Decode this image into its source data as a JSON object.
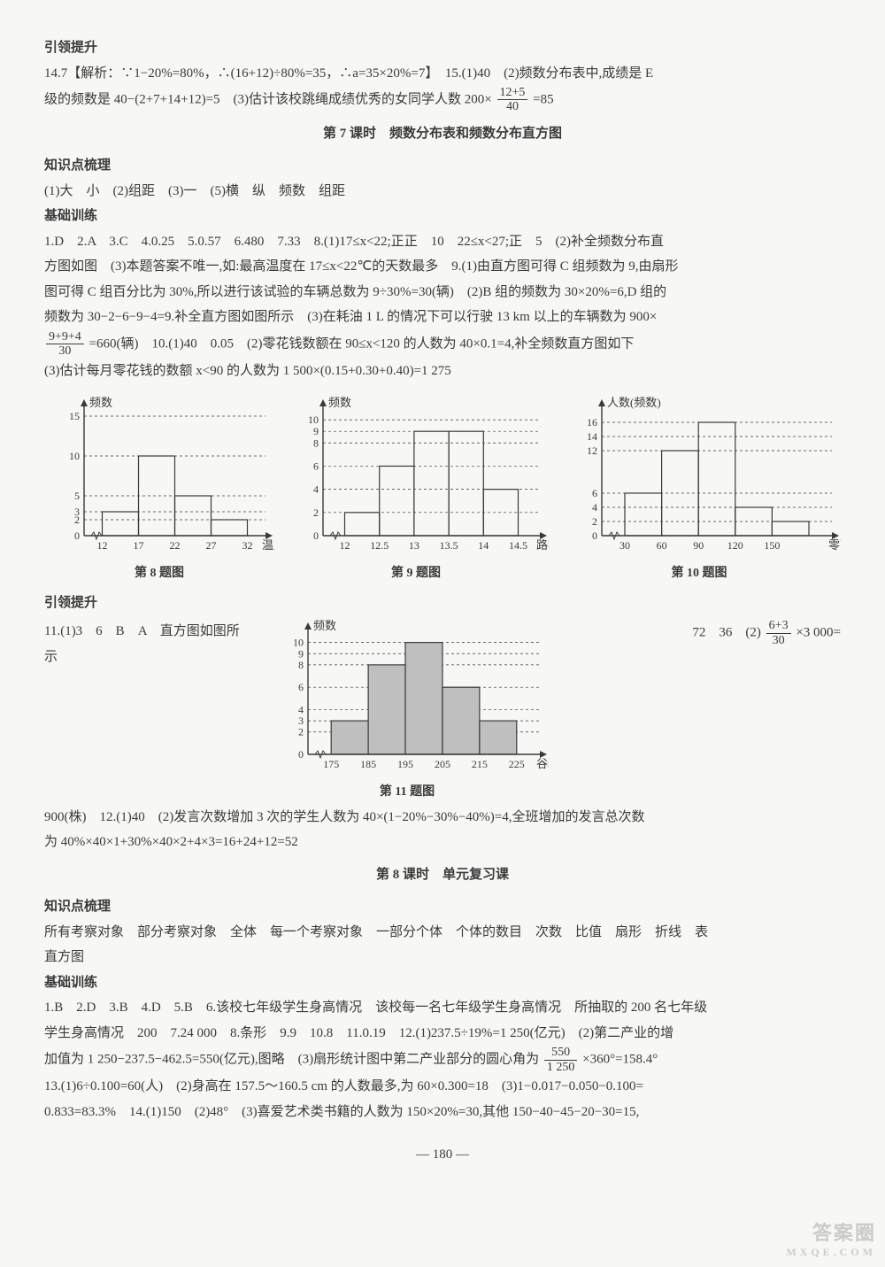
{
  "sec_yinling1": "引领提升",
  "line14": "14.7【解析：∵1−20%=80%，∴(16+12)÷80%=35，∴a=35×20%=7】　15.(1)40　(2)频数分布表中,成绩是 E",
  "line14b_pre": "级的频数是 40−(2+7+14+12)=5　(3)估计该校跳绳成绩优秀的女同学人数 200×",
  "frac1_num": "12+5",
  "frac1_den": "40",
  "line14b_post": "=85",
  "title7": "第 7 课时　频数分布表和频数分布直方图",
  "sec_zhishi1": "知识点梳理",
  "zhishi1_line": "(1)大　小　(2)组距　(3)一　(5)横　纵　频数　组距",
  "sec_jichu1": "基础训练",
  "jichu_l1": "1.D　2.A　3.C　4.0.25　5.0.57　6.480　7.33　8.(1)17≤x<22;正正　10　22≤x<27;正　5　(2)补全频数分布直",
  "jichu_l2": "方图如图　(3)本题答案不唯一,如:最高温度在 17≤x<22℃的天数最多　9.(1)由直方图可得 C 组频数为 9,由扇形",
  "jichu_l3": "图可得 C 组百分比为 30%,所以进行该试验的车辆总数为 9÷30%=30(辆)　(2)B 组的频数为 30×20%=6,D 组的",
  "jichu_l4": "频数为 30−2−6−9−4=9.补全直方图如图所示　(3)在耗油 1 L 的情况下可以行驶 13 km 以上的车辆数为 900×",
  "frac2_num": "9+9+4",
  "frac2_den": "30",
  "jichu_l5_mid": "=660(辆)　10.(1)40　0.05　(2)零花钱数额在 90≤x<120 的人数为 40×0.1=4,补全频数直方图如下",
  "jichu_l6": "(3)估计每月零花钱的数额 x<90 的人数为 1 500×(0.15+0.30+0.40)=1 275",
  "chart8": {
    "type": "bar",
    "y_label": "频数",
    "x_label": "温度/℃",
    "x_ticks": [
      "12",
      "17",
      "22",
      "27",
      "32"
    ],
    "y_ticks": [
      0,
      2,
      3,
      5,
      10,
      15
    ],
    "values": [
      3,
      10,
      5,
      2
    ],
    "ylim": [
      0,
      16
    ],
    "bar_fill": "none",
    "stroke": "#3a3a3a",
    "grid_dash": "3,3",
    "caption": "第 8 题图"
  },
  "chart9": {
    "type": "bar",
    "y_label": "频数",
    "x_label": "路程/km",
    "x_ticks": [
      "12",
      "12.5",
      "13",
      "13.5",
      "14",
      "14.5"
    ],
    "y_ticks": [
      0,
      2,
      4,
      6,
      8,
      9,
      10
    ],
    "values": [
      2,
      6,
      9,
      9,
      4
    ],
    "ylim": [
      0,
      11
    ],
    "bar_fill": "none",
    "stroke": "#3a3a3a",
    "grid_dash": "3,3",
    "caption": "第 9 题图"
  },
  "chart10": {
    "type": "bar",
    "y_label": "人数(频数)",
    "x_label": "零花钱数额/元",
    "x_ticks": [
      "30",
      "60",
      "90",
      "120",
      "150"
    ],
    "y_ticks": [
      0,
      2,
      4,
      6,
      12,
      14,
      16
    ],
    "values": [
      6,
      12,
      16,
      4,
      2
    ],
    "ylim": [
      0,
      18
    ],
    "bar_fill": "none",
    "stroke": "#3a3a3a",
    "grid_dash": "3,3",
    "caption": "第 10 题图"
  },
  "sec_yinling2": "引领提升",
  "line11_left": "11.(1)3　6　B　A　直方图如图所示",
  "line11_right_pre": "72　36　(2)",
  "frac3_num": "6+3",
  "frac3_den": "30",
  "line11_right_post": "×3 000=",
  "chart11": {
    "type": "bar",
    "y_label": "频数",
    "x_label": "谷粒数/颗",
    "x_ticks": [
      "175",
      "185",
      "195",
      "205",
      "215",
      "225"
    ],
    "y_ticks": [
      0,
      2,
      3,
      4,
      6,
      8,
      9,
      10
    ],
    "values": [
      3,
      8,
      10,
      6,
      3
    ],
    "ylim": [
      0,
      11
    ],
    "bar_fill": "#bfbfbf",
    "stroke": "#3a3a3a",
    "grid_dash": "3,3",
    "caption": "第 11 题图"
  },
  "line12a": "900(株)　12.(1)40　(2)发言次数增加 3 次的学生人数为 40×(1−20%−30%−40%)=4,全班增加的发言总次数",
  "line12b": "为 40%×40×1+30%×40×2+4×3=16+24+12=52",
  "title8": "第 8 课时　单元复习课",
  "sec_zhishi2": "知识点梳理",
  "zhishi2_l1": "所有考察对象　部分考察对象　全体　每一个考察对象　一部分个体　个体的数目　次数　比值　扇形　折线　表",
  "zhishi2_l2": "直方图",
  "sec_jichu2": "基础训练",
  "jichu2_l1": "1.B　2.D　3.B　4.D　5.B　6.该校七年级学生身高情况　该校每一名七年级学生身高情况　所抽取的 200 名七年级",
  "jichu2_l2": "学生身高情况　200　7.24 000　8.条形　9.9　10.8　11.0.19　12.(1)237.5÷19%=1 250(亿元)　(2)第二产业的增",
  "jichu2_l3_pre": "加值为 1 250−237.5−462.5=550(亿元),图略　(3)扇形统计图中第二产业部分的圆心角为",
  "frac4_num": "550",
  "frac4_den": "1 250",
  "jichu2_l3_post": "×360°=158.4°",
  "jichu2_l4": "13.(1)6÷0.100=60(人)　(2)身高在 157.5～160.5 cm 的人数最多,为 60×0.300=18　(3)1−0.017−0.050−0.100=",
  "jichu2_l5": "0.833=83.3%　14.(1)150　(2)48°　(3)喜爱艺术类书籍的人数为 150×20%=30,其他 150−40−45−20−30=15,",
  "page_number": "— 180 —",
  "watermark_main": "答案圈",
  "watermark_sub": "MXQE.COM"
}
